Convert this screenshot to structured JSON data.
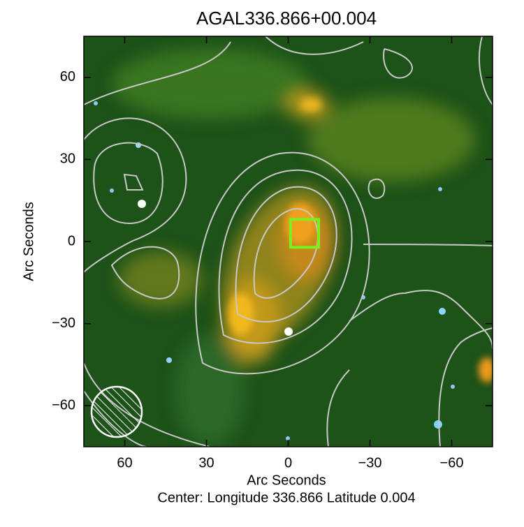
{
  "chart_data": {
    "type": "image",
    "title": "AGAL336.866+00.004",
    "xlabel": "Arc Seconds",
    "ylabel": "Arc Seconds",
    "subtitle": "Center:  Longitude 336.866 Latitude 0.004",
    "xlim": [
      75,
      -75
    ],
    "ylim": [
      -75,
      75
    ],
    "xticks": [
      60,
      30,
      0,
      {
        "value": -30,
        "label": "−30"
      },
      {
        "value": -60,
        "label": "−60"
      }
    ],
    "yticks": [
      {
        "value": -60,
        "label": "−60"
      },
      {
        "value": -30,
        "label": "−30"
      },
      0,
      30,
      60
    ],
    "marker": {
      "x": -6,
      "y": 3,
      "color": "#7cf01e"
    }
  }
}
